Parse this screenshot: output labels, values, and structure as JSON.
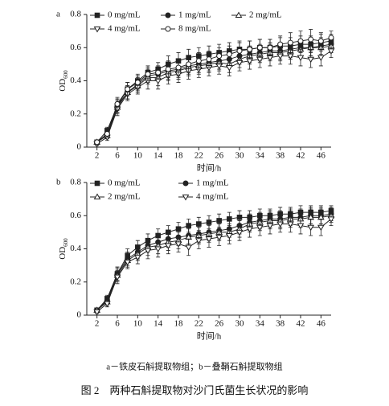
{
  "chart_data": [
    {
      "type": "line",
      "panel_label": "a",
      "ylabel": "OD",
      "ylabel_subscript": "600",
      "xlabel": "时间/h",
      "xlim": [
        0,
        48
      ],
      "ylim": [
        0,
        0.8
      ],
      "xticks": [
        2,
        6,
        10,
        14,
        18,
        22,
        26,
        30,
        34,
        38,
        42,
        46
      ],
      "yticks": [
        0,
        0.2,
        0.4,
        0.6,
        0.8
      ],
      "legend_columns": 3,
      "x": [
        2,
        4,
        6,
        8,
        10,
        12,
        14,
        16,
        18,
        20,
        22,
        24,
        26,
        28,
        30,
        32,
        34,
        36,
        38,
        40,
        42,
        44,
        46,
        48
      ],
      "series": [
        {
          "name": "0 mg/mL",
          "color": "#222",
          "marker": "square",
          "filled": true,
          "values": [
            0.03,
            0.1,
            0.25,
            0.35,
            0.4,
            0.45,
            0.47,
            0.5,
            0.52,
            0.54,
            0.55,
            0.56,
            0.57,
            0.58,
            0.59,
            0.59,
            0.6,
            0.6,
            0.61,
            0.61,
            0.62,
            0.62,
            0.63,
            0.64
          ],
          "errors": [
            0.01,
            0.02,
            0.04,
            0.04,
            0.04,
            0.04,
            0.04,
            0.05,
            0.05,
            0.05,
            0.05,
            0.05,
            0.05,
            0.05,
            0.05,
            0.05,
            0.05,
            0.05,
            0.05,
            0.05,
            0.05,
            0.05,
            0.05,
            0.04
          ]
        },
        {
          "name": "1 mg/mL",
          "color": "#222",
          "marker": "circle",
          "filled": true,
          "values": [
            0.03,
            0.08,
            0.25,
            0.33,
            0.38,
            0.43,
            0.44,
            0.46,
            0.47,
            0.49,
            0.5,
            0.51,
            0.52,
            0.53,
            0.55,
            0.56,
            0.57,
            0.58,
            0.58,
            0.59,
            0.6,
            0.6,
            0.61,
            0.62
          ],
          "errors": [
            0.01,
            0.02,
            0.04,
            0.04,
            0.04,
            0.04,
            0.04,
            0.05,
            0.05,
            0.05,
            0.05,
            0.05,
            0.05,
            0.05,
            0.05,
            0.05,
            0.05,
            0.05,
            0.05,
            0.05,
            0.05,
            0.05,
            0.05,
            0.04
          ]
        },
        {
          "name": "2 mg/mL",
          "color": "#222",
          "marker": "triangle-up",
          "filled": false,
          "values": [
            0.03,
            0.07,
            0.24,
            0.33,
            0.37,
            0.42,
            0.42,
            0.45,
            0.46,
            0.48,
            0.49,
            0.5,
            0.51,
            0.5,
            0.53,
            0.55,
            0.56,
            0.57,
            0.57,
            0.58,
            0.59,
            0.6,
            0.6,
            0.61
          ],
          "errors": [
            0.01,
            0.02,
            0.04,
            0.04,
            0.04,
            0.04,
            0.05,
            0.05,
            0.05,
            0.05,
            0.05,
            0.05,
            0.05,
            0.05,
            0.05,
            0.05,
            0.05,
            0.05,
            0.05,
            0.05,
            0.05,
            0.05,
            0.05,
            0.04
          ]
        },
        {
          "name": "4 mg/mL",
          "color": "#222",
          "marker": "triangle-down",
          "filled": false,
          "values": [
            0.02,
            0.06,
            0.23,
            0.32,
            0.36,
            0.4,
            0.4,
            0.43,
            0.44,
            0.46,
            0.47,
            0.48,
            0.49,
            0.48,
            0.51,
            0.52,
            0.53,
            0.54,
            0.55,
            0.55,
            0.54,
            0.53,
            0.54,
            0.58
          ],
          "errors": [
            0.01,
            0.02,
            0.04,
            0.04,
            0.04,
            0.05,
            0.05,
            0.05,
            0.05,
            0.05,
            0.05,
            0.05,
            0.05,
            0.05,
            0.05,
            0.05,
            0.05,
            0.05,
            0.05,
            0.05,
            0.05,
            0.05,
            0.05,
            0.04
          ]
        },
        {
          "name": "8 mg/mL",
          "color": "#222",
          "marker": "circle",
          "filled": false,
          "values": [
            0.03,
            0.08,
            0.26,
            0.35,
            0.39,
            0.44,
            0.45,
            0.47,
            0.48,
            0.5,
            0.52,
            0.53,
            0.55,
            0.56,
            0.58,
            0.59,
            0.6,
            0.6,
            0.62,
            0.63,
            0.64,
            0.65,
            0.64,
            0.66
          ],
          "errors": [
            0.01,
            0.02,
            0.04,
            0.04,
            0.04,
            0.04,
            0.04,
            0.05,
            0.05,
            0.05,
            0.05,
            0.05,
            0.05,
            0.05,
            0.05,
            0.05,
            0.05,
            0.05,
            0.05,
            0.06,
            0.06,
            0.06,
            0.05,
            0.04
          ]
        }
      ]
    },
    {
      "type": "line",
      "panel_label": "b",
      "ylabel": "OD",
      "ylabel_subscript": "600",
      "xlabel": "时间/h",
      "xlim": [
        0,
        48
      ],
      "ylim": [
        0,
        0.8
      ],
      "xticks": [
        2,
        6,
        10,
        14,
        18,
        22,
        26,
        30,
        34,
        38,
        42,
        46
      ],
      "yticks": [
        0,
        0.2,
        0.4,
        0.6,
        0.8
      ],
      "legend_columns": 2,
      "x": [
        2,
        4,
        6,
        8,
        10,
        12,
        14,
        16,
        18,
        20,
        22,
        24,
        26,
        28,
        30,
        32,
        34,
        36,
        38,
        40,
        42,
        44,
        46,
        48
      ],
      "series": [
        {
          "name": "0 mg/mL",
          "color": "#222",
          "marker": "square",
          "filled": true,
          "values": [
            0.03,
            0.1,
            0.25,
            0.36,
            0.41,
            0.45,
            0.48,
            0.5,
            0.52,
            0.54,
            0.55,
            0.56,
            0.57,
            0.58,
            0.59,
            0.59,
            0.6,
            0.6,
            0.61,
            0.61,
            0.62,
            0.62,
            0.62,
            0.63
          ],
          "errors": [
            0.01,
            0.02,
            0.04,
            0.04,
            0.04,
            0.04,
            0.04,
            0.04,
            0.04,
            0.04,
            0.04,
            0.04,
            0.04,
            0.04,
            0.04,
            0.04,
            0.04,
            0.04,
            0.04,
            0.04,
            0.04,
            0.04,
            0.04,
            0.03
          ]
        },
        {
          "name": "1 mg/mL",
          "color": "#222",
          "marker": "circle",
          "filled": true,
          "values": [
            0.03,
            0.09,
            0.25,
            0.34,
            0.38,
            0.42,
            0.44,
            0.46,
            0.47,
            0.48,
            0.49,
            0.5,
            0.51,
            0.52,
            0.54,
            0.56,
            0.57,
            0.58,
            0.58,
            0.59,
            0.59,
            0.6,
            0.6,
            0.61
          ],
          "errors": [
            0.01,
            0.02,
            0.04,
            0.04,
            0.04,
            0.04,
            0.04,
            0.05,
            0.05,
            0.05,
            0.05,
            0.05,
            0.05,
            0.05,
            0.05,
            0.05,
            0.05,
            0.05,
            0.05,
            0.05,
            0.05,
            0.05,
            0.05,
            0.04
          ]
        },
        {
          "name": "2 mg/mL",
          "color": "#222",
          "marker": "triangle-up",
          "filled": false,
          "values": [
            0.03,
            0.08,
            0.24,
            0.33,
            0.37,
            0.41,
            0.42,
            0.44,
            0.45,
            0.47,
            0.48,
            0.49,
            0.5,
            0.5,
            0.52,
            0.55,
            0.56,
            0.57,
            0.57,
            0.58,
            0.58,
            0.59,
            0.59,
            0.6
          ],
          "errors": [
            0.01,
            0.02,
            0.04,
            0.04,
            0.04,
            0.05,
            0.05,
            0.05,
            0.05,
            0.05,
            0.05,
            0.05,
            0.05,
            0.05,
            0.05,
            0.05,
            0.05,
            0.05,
            0.05,
            0.05,
            0.05,
            0.05,
            0.05,
            0.04
          ]
        },
        {
          "name": "4 mg/mL",
          "color": "#222",
          "marker": "triangle-down",
          "filled": false,
          "values": [
            0.02,
            0.07,
            0.23,
            0.32,
            0.35,
            0.39,
            0.4,
            0.42,
            0.43,
            0.41,
            0.45,
            0.46,
            0.47,
            0.48,
            0.5,
            0.52,
            0.53,
            0.54,
            0.55,
            0.55,
            0.54,
            0.53,
            0.53,
            0.58
          ],
          "errors": [
            0.01,
            0.02,
            0.04,
            0.04,
            0.04,
            0.05,
            0.05,
            0.05,
            0.05,
            0.05,
            0.05,
            0.05,
            0.05,
            0.05,
            0.05,
            0.05,
            0.05,
            0.05,
            0.05,
            0.05,
            0.05,
            0.05,
            0.05,
            0.04
          ]
        }
      ]
    }
  ],
  "caption": "a－铁皮石斛提取物组；b－叠鞘石斛提取物组",
  "figure_caption": "图 2　两种石斛提取物对沙门氏菌生长状况的影响"
}
